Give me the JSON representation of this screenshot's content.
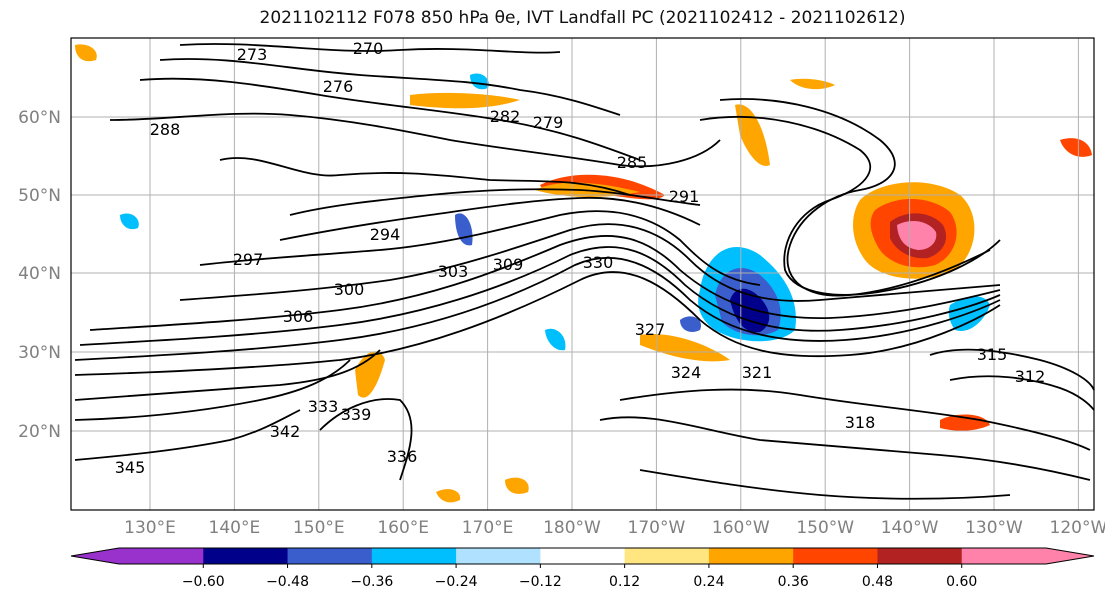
{
  "title": "2021102112 F078 850 hPa θe, IVT Landfall PC (2021102412 - 2021102612)",
  "chart_data": {
    "type": "map",
    "title": "2021102112 F078 850 hPa θe, IVT Landfall PC (2021102412 - 2021102612)",
    "lat_ticks": [
      "60°N",
      "50°N",
      "40°N",
      "30°N",
      "20°N"
    ],
    "lon_ticks": [
      "130°E",
      "140°E",
      "150°E",
      "160°E",
      "170°E",
      "180°W",
      "170°W",
      "160°W",
      "150°W",
      "140°W",
      "130°W",
      "120°W"
    ],
    "grid": true,
    "contour_labels": [
      "270",
      "273",
      "276",
      "279",
      "282",
      "285",
      "288",
      "291",
      "294",
      "297",
      "300",
      "303",
      "306",
      "309",
      "312",
      "315",
      "318",
      "321",
      "324",
      "327",
      "330",
      "333",
      "336",
      "339",
      "342",
      "345"
    ],
    "colorbar": {
      "ticks": [
        "−0.60",
        "−0.48",
        "−0.36",
        "−0.24",
        "−0.12",
        "0.12",
        "0.24",
        "0.36",
        "0.48",
        "0.60"
      ],
      "colors": [
        "#9932cc",
        "#00008b",
        "#3a5fcd",
        "#00bfff",
        "#b0e2ff",
        "#ffffff",
        "#ffe680",
        "#ffa500",
        "#ff4500",
        "#b22222",
        "#ff82ab",
        "#ff82ab"
      ],
      "extend": "both"
    }
  }
}
